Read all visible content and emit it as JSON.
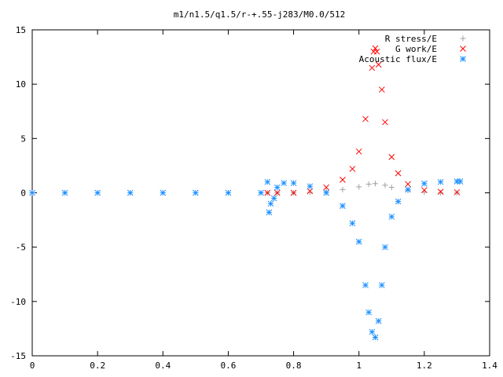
{
  "chart_data": {
    "type": "scatter",
    "title": "m1/n1.5/q1.5/r-+.55-j283/M0.0/512",
    "xlabel": "",
    "ylabel": "",
    "xlim": [
      0,
      1.4
    ],
    "ylim": [
      -15,
      15
    ],
    "x_ticks": [
      "0",
      "0.2",
      "0.4",
      "0.6",
      "0.8",
      "1",
      "1.2",
      "1.4"
    ],
    "y_ticks": [
      "15",
      "10",
      "5",
      "0",
      "-5",
      "-10",
      "-15"
    ],
    "grid": false,
    "legend_position": "top-right",
    "series": [
      {
        "name": "R stress/E",
        "marker": "plus",
        "color": "#a0a0a0",
        "points": [
          [
            0.72,
            0.0
          ],
          [
            0.75,
            0.0
          ],
          [
            0.8,
            0.0
          ],
          [
            0.85,
            0.05
          ],
          [
            0.9,
            0.15
          ],
          [
            0.95,
            0.3
          ],
          [
            1.0,
            0.55
          ],
          [
            1.03,
            0.8
          ],
          [
            1.05,
            0.85
          ],
          [
            1.08,
            0.7
          ],
          [
            1.1,
            0.5
          ],
          [
            1.15,
            0.2
          ],
          [
            1.2,
            0.05
          ],
          [
            1.25,
            0.0
          ],
          [
            1.3,
            0.0
          ]
        ]
      },
      {
        "name": "G work/E",
        "marker": "cross",
        "color": "#ff0000",
        "points": [
          [
            0.72,
            0.0
          ],
          [
            0.75,
            0.0
          ],
          [
            0.8,
            0.0
          ],
          [
            0.85,
            0.15
          ],
          [
            0.9,
            0.5
          ],
          [
            0.95,
            1.2
          ],
          [
            0.98,
            2.2
          ],
          [
            1.0,
            3.8
          ],
          [
            1.02,
            6.8
          ],
          [
            1.04,
            11.5
          ],
          [
            1.045,
            13.0
          ],
          [
            1.05,
            13.3
          ],
          [
            1.055,
            13.0
          ],
          [
            1.06,
            11.8
          ],
          [
            1.07,
            9.5
          ],
          [
            1.08,
            6.5
          ],
          [
            1.1,
            3.3
          ],
          [
            1.12,
            1.8
          ],
          [
            1.15,
            0.8
          ],
          [
            1.2,
            0.25
          ],
          [
            1.25,
            0.1
          ],
          [
            1.3,
            0.05
          ]
        ]
      },
      {
        "name": "Acoustic flux/E",
        "marker": "star",
        "color": "#1e90ff",
        "points": [
          [
            0.0,
            0.0
          ],
          [
            0.1,
            0.0
          ],
          [
            0.2,
            0.0
          ],
          [
            0.3,
            0.0
          ],
          [
            0.4,
            0.0
          ],
          [
            0.5,
            0.0
          ],
          [
            0.6,
            0.0
          ],
          [
            0.7,
            0.0
          ],
          [
            0.72,
            1.0
          ],
          [
            0.725,
            -1.8
          ],
          [
            0.73,
            -1.0
          ],
          [
            0.74,
            -0.5
          ],
          [
            0.75,
            0.5
          ],
          [
            0.77,
            0.9
          ],
          [
            0.8,
            0.9
          ],
          [
            0.85,
            0.6
          ],
          [
            0.9,
            0.0
          ],
          [
            0.95,
            -1.2
          ],
          [
            0.98,
            -2.8
          ],
          [
            1.0,
            -4.5
          ],
          [
            1.02,
            -8.5
          ],
          [
            1.03,
            -11.0
          ],
          [
            1.04,
            -12.8
          ],
          [
            1.05,
            -13.3
          ],
          [
            1.06,
            -11.8
          ],
          [
            1.07,
            -8.5
          ],
          [
            1.08,
            -5.0
          ],
          [
            1.1,
            -2.2
          ],
          [
            1.12,
            -0.8
          ],
          [
            1.15,
            0.3
          ],
          [
            1.2,
            0.85
          ],
          [
            1.25,
            1.0
          ],
          [
            1.3,
            1.05
          ],
          [
            1.31,
            1.05
          ]
        ]
      }
    ]
  }
}
